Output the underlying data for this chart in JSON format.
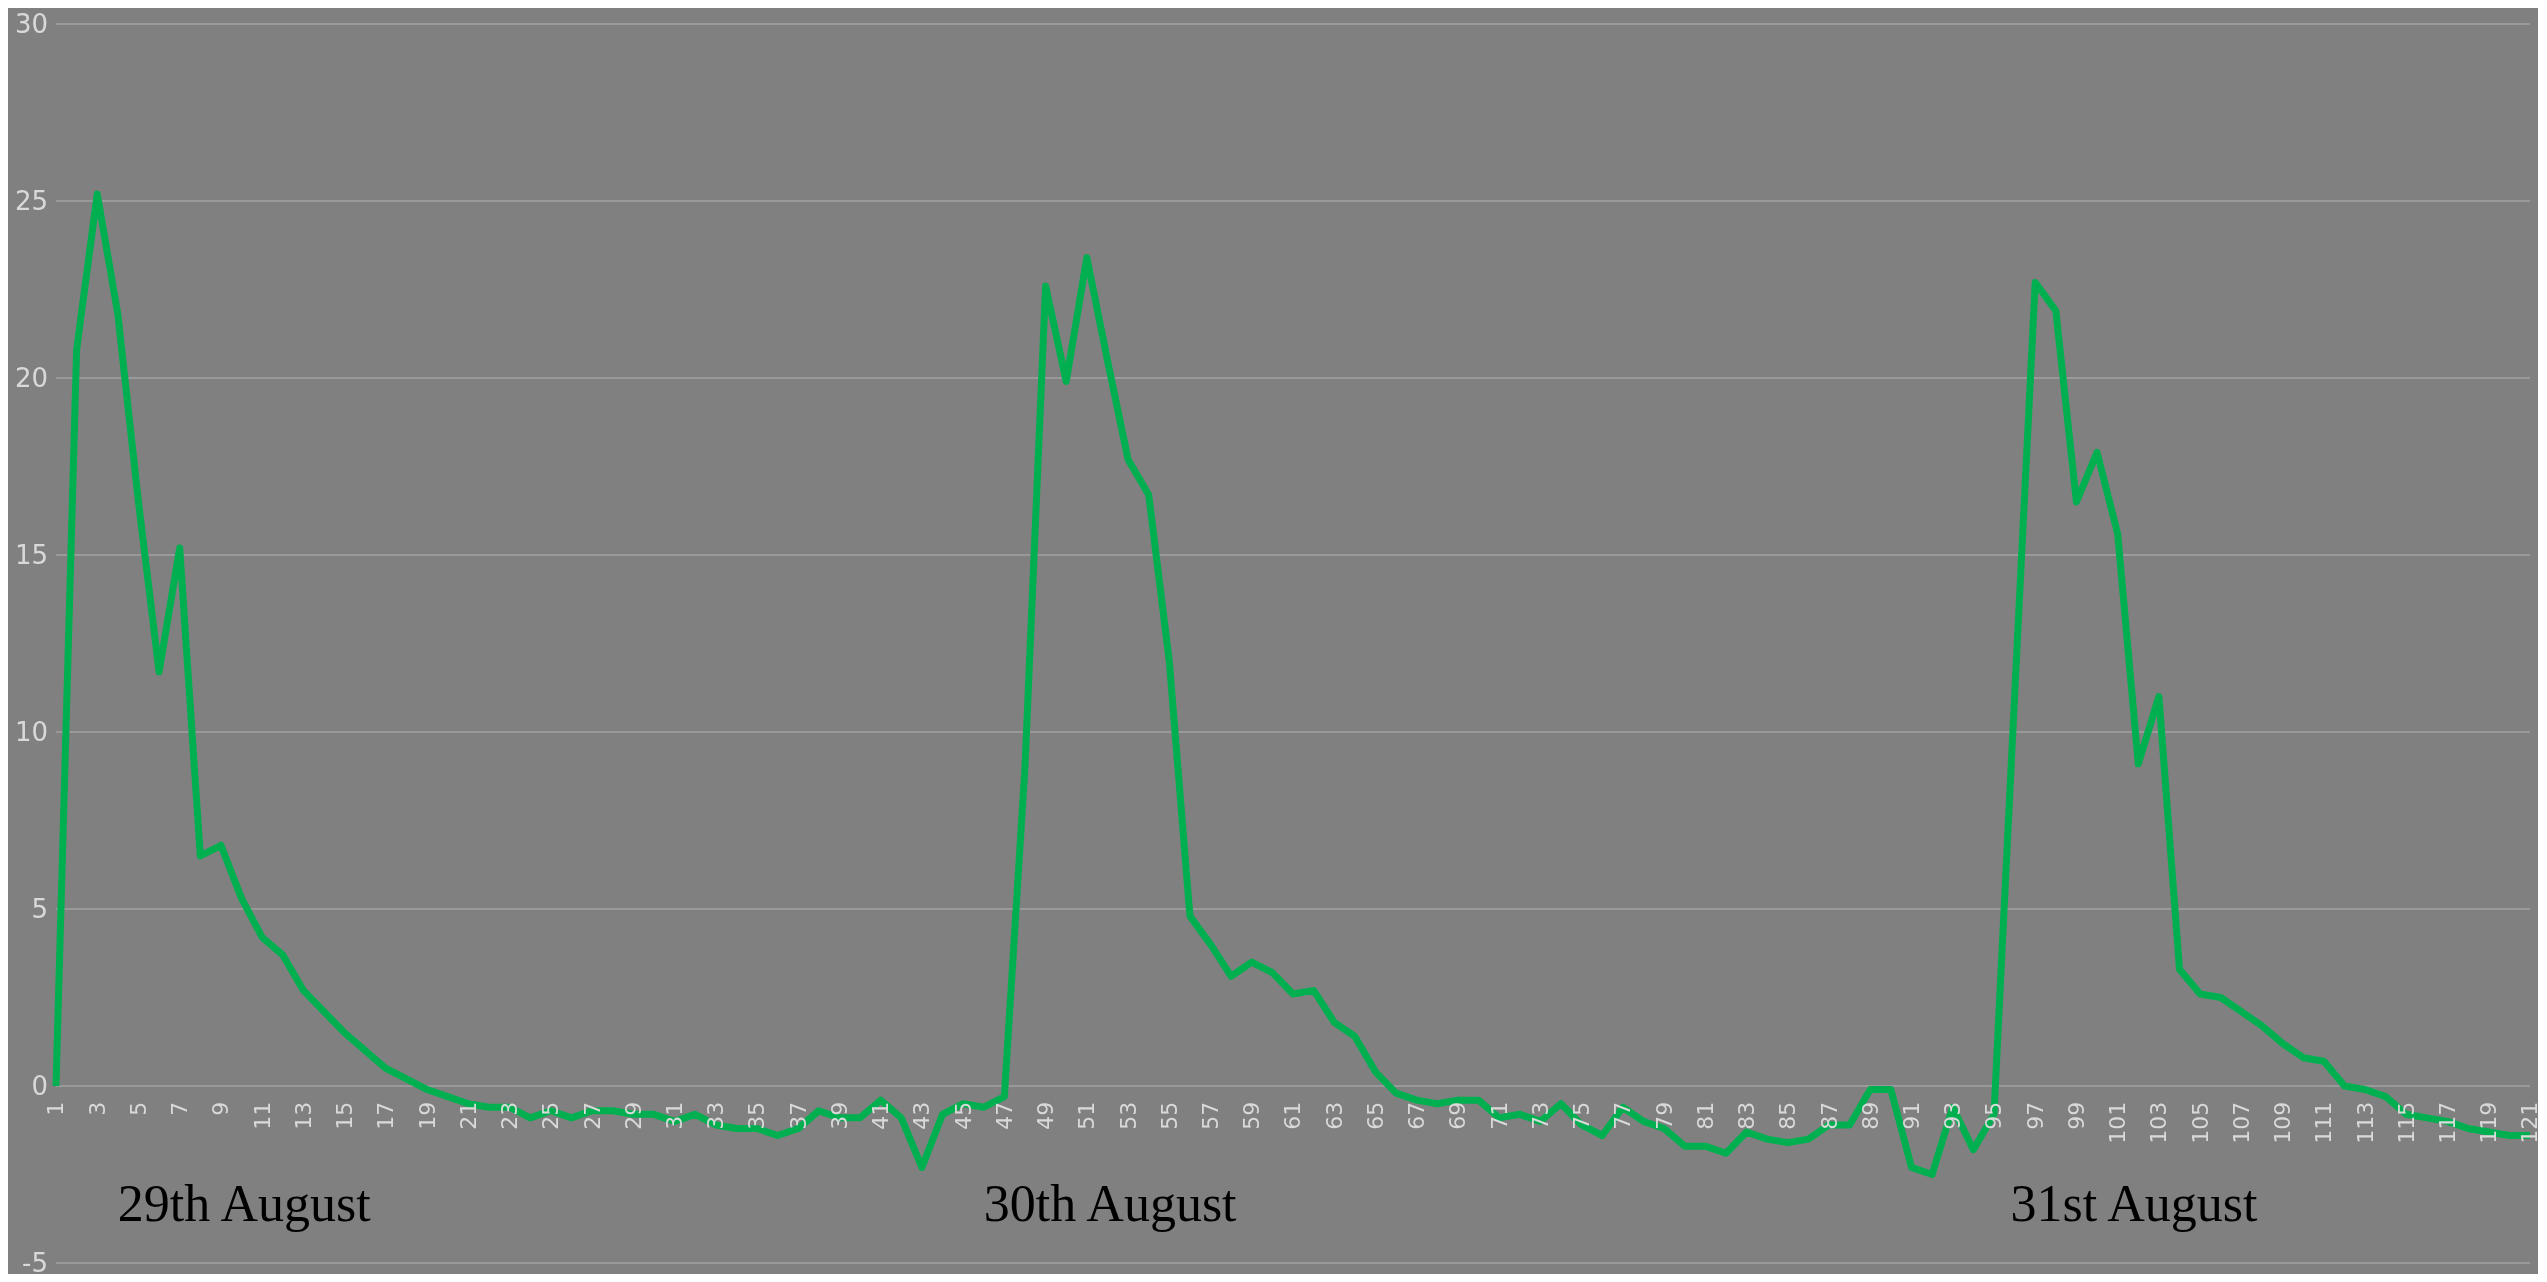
{
  "chart_data": {
    "type": "line",
    "categories": [
      "1",
      null,
      "3",
      null,
      "5",
      null,
      "7",
      null,
      "9",
      null,
      "11",
      null,
      "13",
      null,
      "15",
      null,
      "17",
      null,
      "19",
      null,
      "21",
      null,
      "23",
      null,
      "25",
      null,
      "27",
      null,
      "29",
      null,
      "31",
      null,
      "33",
      null,
      "35",
      null,
      "37",
      null,
      "39",
      null,
      "41",
      null,
      "43",
      null,
      "45",
      null,
      "47",
      null,
      "49",
      null,
      "51",
      null,
      "53",
      null,
      "55",
      null,
      "57",
      null,
      "59",
      null,
      "61",
      null,
      "63",
      null,
      "65",
      null,
      "67",
      null,
      "69",
      null,
      "71",
      null,
      "73",
      null,
      "75",
      null,
      "77",
      null,
      "79",
      null,
      "81",
      null,
      "83",
      null,
      "85",
      null,
      "87",
      null,
      "89",
      null,
      "91",
      null,
      "93",
      null,
      "95",
      null,
      "97",
      null,
      "99",
      null,
      "101",
      null,
      "103",
      null,
      "105",
      null,
      "107",
      null,
      "109",
      null,
      "111",
      null,
      "113",
      null,
      "115",
      null,
      "117",
      null,
      "119",
      null,
      "121"
    ],
    "series": [
      {
        "color": "#00b050",
        "values": [
          0,
          20.8,
          25.2,
          21.8,
          16.5,
          11.7,
          15.2,
          6.5,
          6.8,
          5.3,
          4.2,
          3.7,
          2.7,
          2.1,
          1.5,
          1.0,
          0.5,
          0.2,
          -0.1,
          -0.3,
          -0.5,
          -0.6,
          -0.6,
          -0.9,
          -0.7,
          -0.9,
          -0.7,
          -0.7,
          -0.8,
          -0.8,
          -1.0,
          -0.8,
          -1.1,
          -1.2,
          -1.2,
          -1.4,
          -1.2,
          -0.7,
          -0.9,
          -0.9,
          -0.4,
          -0.9,
          -2.3,
          -0.8,
          -0.5,
          -0.6,
          -0.3,
          9.0,
          22.6,
          19.9,
          23.4,
          20.5,
          17.7,
          16.7,
          12.0,
          4.8,
          4.0,
          3.1,
          3.5,
          3.2,
          2.6,
          2.7,
          1.8,
          1.4,
          0.4,
          -0.2,
          -0.4,
          -0.5,
          -0.4,
          -0.4,
          -0.9,
          -0.8,
          -1.0,
          -0.5,
          -1.1,
          -1.4,
          -0.6,
          -1.0,
          -1.2,
          -1.7,
          -1.7,
          -1.9,
          -1.3,
          -1.5,
          -1.6,
          -1.5,
          -1.1,
          -1.1,
          -0.1,
          -0.1,
          -2.3,
          -2.5,
          -0.6,
          -1.8,
          -0.8,
          11.0,
          22.7,
          21.9,
          16.5,
          17.9,
          15.6,
          9.1,
          11.0,
          3.3,
          2.6,
          2.5,
          2.1,
          1.7,
          1.2,
          0.8,
          0.7,
          0.0,
          -0.1,
          -0.3,
          -0.8,
          -0.9,
          -1.0,
          -1.2,
          -1.3,
          -1.4,
          -1.4
        ]
      }
    ],
    "ylim": [
      -5,
      30
    ],
    "yticks": [
      -5,
      0,
      5,
      10,
      15,
      20,
      25,
      30
    ],
    "grid": "y",
    "legend": false,
    "marker": "none",
    "line_style": "solid",
    "annotations": [
      "29th August",
      "30th August",
      "31st August"
    ]
  }
}
